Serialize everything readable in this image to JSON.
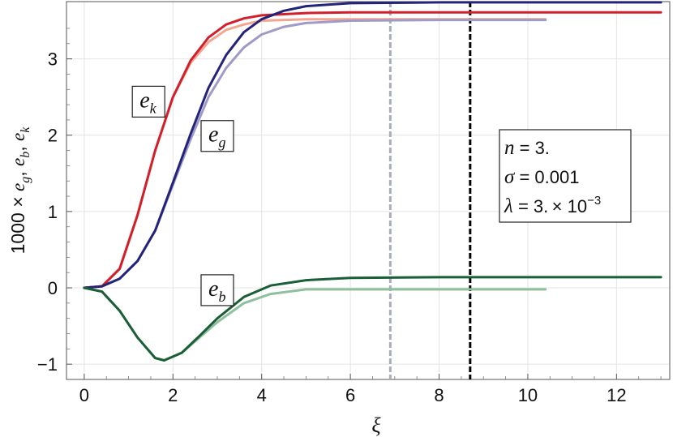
{
  "chart_data": {
    "type": "line",
    "xlabel": "ξ",
    "ylabel_parts": {
      "prefix": "1000 × ",
      "terms": [
        {
          "base": "e",
          "sub": "g"
        },
        {
          "base": "e",
          "sub": "b"
        },
        {
          "base": "e",
          "sub": "k"
        }
      ],
      "separator": ", "
    },
    "xlim": [
      -0.4,
      13.2
    ],
    "ylim": [
      -1.2,
      3.75
    ],
    "x_ticks": [
      0,
      2,
      4,
      6,
      8,
      10,
      12
    ],
    "y_ticks": [
      -1,
      0,
      1,
      2,
      3
    ],
    "x_tick_labels": [
      "0",
      "2",
      "4",
      "6",
      "8",
      "10",
      "12"
    ],
    "y_tick_labels": [
      "−1",
      "0",
      "1",
      "2",
      "3"
    ],
    "grid": true,
    "vertical_lines": [
      {
        "x": 6.9,
        "color": "#a9adb8",
        "style": "dashed"
      },
      {
        "x": 8.7,
        "color": "#000000",
        "style": "dashed"
      }
    ],
    "series": [
      {
        "key": "ek_light",
        "color": "#f2a58f",
        "values": [
          [
            0,
            0
          ],
          [
            0.4,
            0.02
          ],
          [
            0.8,
            0.25
          ],
          [
            1.2,
            0.95
          ],
          [
            1.6,
            1.8
          ],
          [
            2.0,
            2.5
          ],
          [
            2.4,
            2.95
          ],
          [
            2.8,
            3.22
          ],
          [
            3.2,
            3.38
          ],
          [
            3.6,
            3.45
          ],
          [
            4.0,
            3.5
          ],
          [
            5.0,
            3.52
          ],
          [
            6.0,
            3.52
          ],
          [
            8.0,
            3.52
          ],
          [
            10.4,
            3.52
          ]
        ]
      },
      {
        "key": "eg_light",
        "color": "#a09ac8",
        "values": [
          [
            0,
            0
          ],
          [
            0.4,
            0.02
          ],
          [
            0.8,
            0.12
          ],
          [
            1.2,
            0.35
          ],
          [
            1.6,
            0.75
          ],
          [
            2.0,
            1.35
          ],
          [
            2.4,
            1.95
          ],
          [
            2.8,
            2.5
          ],
          [
            3.2,
            2.88
          ],
          [
            3.6,
            3.15
          ],
          [
            4.0,
            3.32
          ],
          [
            4.5,
            3.42
          ],
          [
            5.0,
            3.47
          ],
          [
            6.0,
            3.5
          ],
          [
            8.0,
            3.51
          ],
          [
            10.4,
            3.51
          ]
        ]
      },
      {
        "key": "eb_light",
        "color": "#8fbf9c",
        "values": [
          [
            0,
            0
          ],
          [
            0.4,
            -0.05
          ],
          [
            0.8,
            -0.3
          ],
          [
            1.2,
            -0.65
          ],
          [
            1.6,
            -0.92
          ],
          [
            1.8,
            -0.95
          ],
          [
            2.2,
            -0.85
          ],
          [
            2.6,
            -0.65
          ],
          [
            3.0,
            -0.45
          ],
          [
            3.6,
            -0.2
          ],
          [
            4.2,
            -0.08
          ],
          [
            5.0,
            -0.02
          ],
          [
            6.0,
            -0.02
          ],
          [
            8.0,
            -0.02
          ],
          [
            10.4,
            -0.02
          ]
        ]
      },
      {
        "key": "ek",
        "color": "#d21f2c",
        "values": [
          [
            0,
            0
          ],
          [
            0.4,
            0.02
          ],
          [
            0.8,
            0.25
          ],
          [
            1.2,
            0.95
          ],
          [
            1.6,
            1.8
          ],
          [
            2.0,
            2.5
          ],
          [
            2.4,
            2.98
          ],
          [
            2.8,
            3.28
          ],
          [
            3.2,
            3.45
          ],
          [
            3.6,
            3.53
          ],
          [
            4.0,
            3.57
          ],
          [
            5.0,
            3.6
          ],
          [
            6.0,
            3.61
          ],
          [
            8.0,
            3.61
          ],
          [
            10.0,
            3.61
          ],
          [
            13.0,
            3.61
          ]
        ]
      },
      {
        "key": "eg",
        "color": "#23237a",
        "values": [
          [
            0,
            0
          ],
          [
            0.4,
            0.02
          ],
          [
            0.8,
            0.12
          ],
          [
            1.2,
            0.35
          ],
          [
            1.6,
            0.75
          ],
          [
            2.0,
            1.38
          ],
          [
            2.4,
            2.02
          ],
          [
            2.8,
            2.62
          ],
          [
            3.2,
            3.05
          ],
          [
            3.6,
            3.35
          ],
          [
            4.0,
            3.52
          ],
          [
            4.5,
            3.63
          ],
          [
            5.0,
            3.69
          ],
          [
            6.0,
            3.73
          ],
          [
            8.0,
            3.74
          ],
          [
            10.0,
            3.74
          ],
          [
            13.0,
            3.74
          ]
        ]
      },
      {
        "key": "eb",
        "color": "#1a5e36",
        "values": [
          [
            0,
            0
          ],
          [
            0.4,
            -0.05
          ],
          [
            0.8,
            -0.3
          ],
          [
            1.2,
            -0.65
          ],
          [
            1.6,
            -0.92
          ],
          [
            1.8,
            -0.95
          ],
          [
            2.2,
            -0.85
          ],
          [
            2.6,
            -0.63
          ],
          [
            3.0,
            -0.4
          ],
          [
            3.6,
            -0.12
          ],
          [
            4.2,
            0.03
          ],
          [
            5.0,
            0.1
          ],
          [
            6.0,
            0.13
          ],
          [
            8.0,
            0.14
          ],
          [
            10.0,
            0.14
          ],
          [
            13.0,
            0.14
          ]
        ]
      }
    ],
    "curve_labels": [
      {
        "base": "e",
        "sub": "k",
        "x": 1.45,
        "y": 2.45
      },
      {
        "base": "e",
        "sub": "g",
        "x": 3.0,
        "y": 2.0
      },
      {
        "base": "e",
        "sub": "b",
        "x": 3.0,
        "y": -0.02
      }
    ],
    "info_box": {
      "lines": [
        {
          "var": "n",
          "text": " = 3."
        },
        {
          "var": "σ",
          "text": " = 0.001"
        },
        {
          "var": "λ",
          "text": " = 3. × 10",
          "sup": "−3"
        }
      ]
    }
  }
}
